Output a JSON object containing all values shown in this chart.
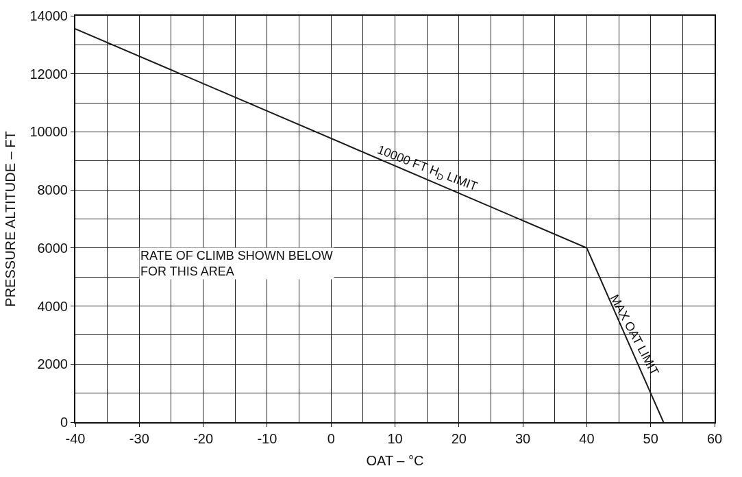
{
  "chart_data": {
    "type": "line",
    "xlabel": "OAT – °C",
    "ylabel": "PRESSURE ALTITUDE – FT",
    "x": [
      -40,
      40,
      52
    ],
    "series": [
      {
        "color": "#1a1a1a",
        "values": [
          13550,
          6000,
          0
        ]
      }
    ],
    "xlim": [
      -40,
      60
    ],
    "xticks": [
      -40,
      -30,
      -20,
      -10,
      0,
      10,
      20,
      30,
      40,
      50,
      60
    ],
    "ylim": [
      0,
      14000
    ],
    "yticks": [
      0,
      2000,
      4000,
      6000,
      8000,
      10000,
      12000,
      14000
    ],
    "grid": true,
    "annotations": [
      {
        "text": "10000 FT H$_{D}$ LIMIT",
        "x": 15,
        "y": 8400
      },
      {
        "text": "MAX OAT LIMIT",
        "x": 46,
        "y": 3000
      },
      "RATE OF CLIMB SHOWN BELOW\nFOR THIS AREA"
    ]
  }
}
